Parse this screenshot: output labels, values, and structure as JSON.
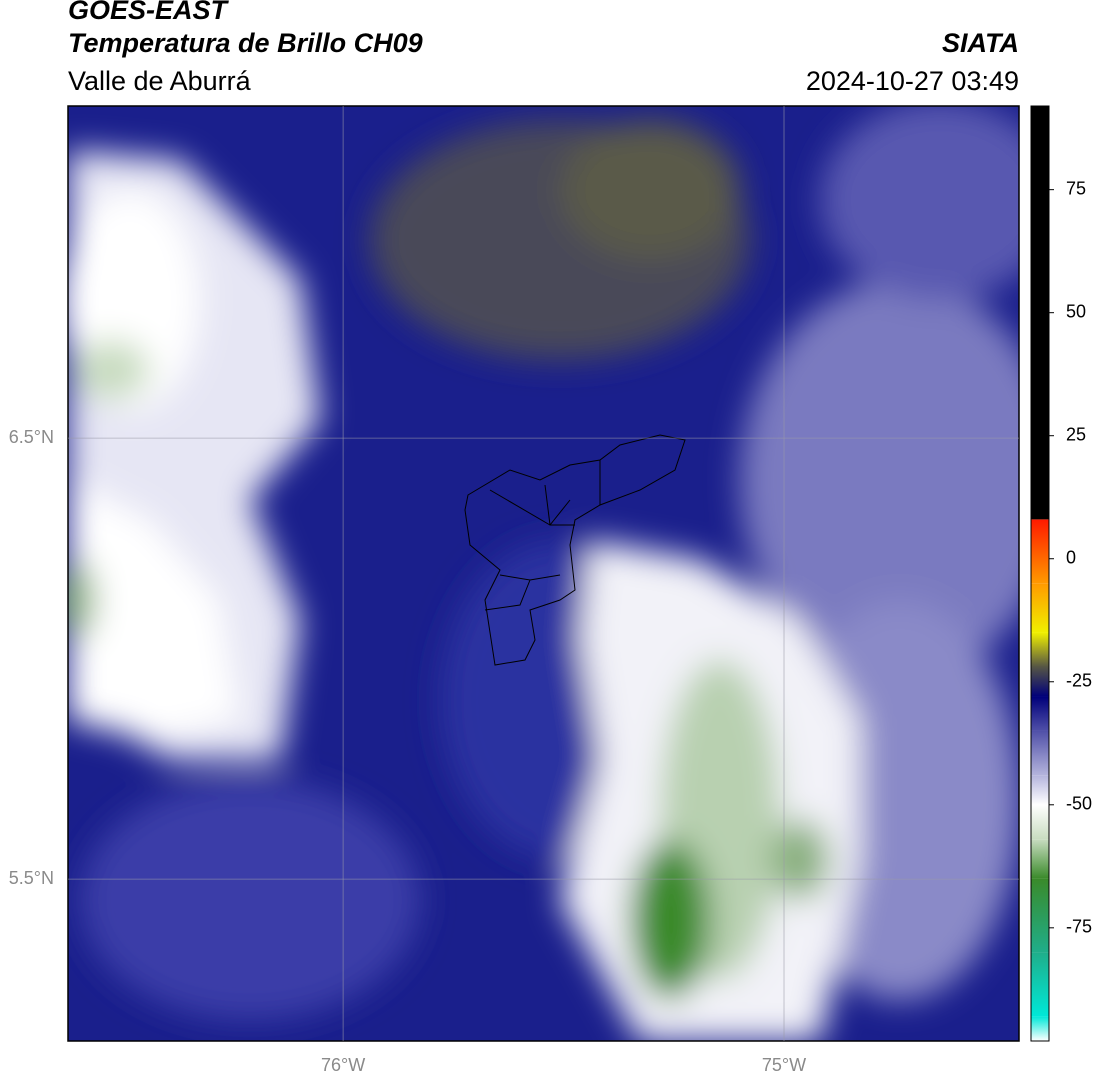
{
  "header": {
    "title": "GOES-EAST",
    "subtitle": "Temperatura de Brillo CH09",
    "region": "Valle de Aburrá",
    "source": "SIATA",
    "datetime": "2024-10-27 03:49"
  },
  "map": {
    "xlim": [
      -76.624,
      -74.467
    ],
    "ylim": [
      5.133,
      7.253
    ],
    "xticks": [
      {
        "value": -76,
        "label": "76°W"
      },
      {
        "value": -75,
        "label": "75°W"
      }
    ],
    "yticks": [
      {
        "value": 6.5,
        "label": "6.5°N"
      },
      {
        "value": 5.5,
        "label": "5.5°N"
      }
    ],
    "grid": true
  },
  "colorbar": {
    "lim": [
      -98,
      92
    ],
    "ticks": [
      -75,
      -50,
      -25,
      0,
      25,
      50,
      75
    ],
    "stops": [
      {
        "value": -98,
        "color": "#ffffff"
      },
      {
        "value": -93,
        "color": "#00e8d8"
      },
      {
        "value": -80,
        "color": "#1fae8a"
      },
      {
        "value": -65,
        "color": "#3a8a2a"
      },
      {
        "value": -57,
        "color": "#c8dcc0"
      },
      {
        "value": -50,
        "color": "#ffffff"
      },
      {
        "value": -44,
        "color": "#b4b4dc"
      },
      {
        "value": -35,
        "color": "#5050a8"
      },
      {
        "value": -28,
        "color": "#00007a"
      },
      {
        "value": -22,
        "color": "#555545"
      },
      {
        "value": -15,
        "color": "#f0f000"
      },
      {
        "value": -5,
        "color": "#ff9a00"
      },
      {
        "value": 8,
        "color": "#ff1a00"
      },
      {
        "value": 8,
        "color": "#000000"
      },
      {
        "value": 92,
        "color": "#000000"
      }
    ]
  }
}
